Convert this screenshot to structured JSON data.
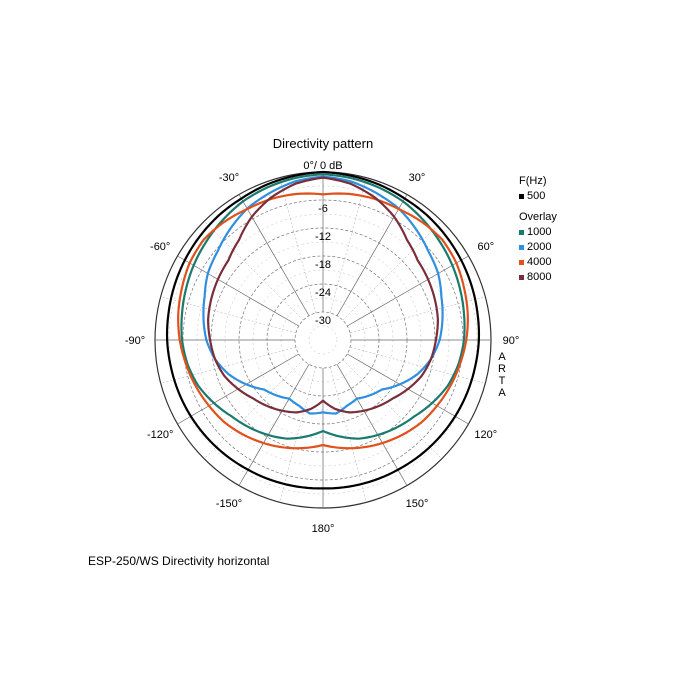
{
  "chart_data": {
    "type": "polar",
    "title": "Directivity pattern",
    "radial_labels": [
      "0°/ 0 dB",
      "-6",
      "-12",
      "-18",
      "-24",
      "-30"
    ],
    "radial_range_db": [
      -36,
      0
    ],
    "radial_step_db": 6,
    "angle_labels": [
      {
        "deg": -30,
        "text": "-30°"
      },
      {
        "deg": 30,
        "text": "30°"
      },
      {
        "deg": -60,
        "text": "-60°"
      },
      {
        "deg": 60,
        "text": "60°"
      },
      {
        "deg": -90,
        "text": "-90°"
      },
      {
        "deg": 90,
        "text": "90°"
      },
      {
        "deg": -120,
        "text": "-120°"
      },
      {
        "deg": 120,
        "text": "120°"
      },
      {
        "deg": -150,
        "text": "-150°"
      },
      {
        "deg": 150,
        "text": "150°"
      },
      {
        "deg": 180,
        "text": "180°"
      }
    ],
    "grid": true,
    "angles_deg": [
      0,
      10,
      20,
      30,
      40,
      50,
      60,
      70,
      80,
      90,
      100,
      110,
      120,
      130,
      140,
      150,
      160,
      170,
      180
    ],
    "symmetric": true,
    "series": [
      {
        "name": "500",
        "color": "#000000",
        "values_db": [
          0,
          -0.3,
          -0.6,
          -1.0,
          -1.2,
          -1.5,
          -1.8,
          -2.1,
          -2.4,
          -2.6,
          -2.9,
          -3.1,
          -3.3,
          -3.5,
          -3.7,
          -3.9,
          -4.0,
          -4.1,
          -4.2
        ]
      },
      {
        "name": "1000",
        "color": "#1a7a6e",
        "values_db": [
          -0.5,
          -0.8,
          -1.2,
          -1.7,
          -2.5,
          -3.3,
          -4.0,
          -4.7,
          -5.3,
          -5.8,
          -6.5,
          -7.5,
          -9.0,
          -10.5,
          -11.5,
          -12.5,
          -13.5,
          -15.0,
          -16.5
        ]
      },
      {
        "name": "2000",
        "color": "#2f8fe0",
        "values_db": [
          -1.0,
          -1.5,
          -2.5,
          -3.5,
          -5.0,
          -6.5,
          -7.5,
          -9.0,
          -10.0,
          -11.0,
          -12.5,
          -14.5,
          -17.0,
          -19.5,
          -20.5,
          -21.5,
          -21.0,
          -20.0,
          -20.5
        ]
      },
      {
        "name": "4000",
        "color": "#e0511c",
        "values_db": [
          -4.8,
          -4.2,
          -3.8,
          -3.6,
          -3.0,
          -2.6,
          -3.0,
          -3.8,
          -4.5,
          -5.3,
          -6.2,
          -7.0,
          -7.8,
          -8.5,
          -9.5,
          -10.5,
          -11.5,
          -12.5,
          -13.5
        ]
      },
      {
        "name": "8000",
        "color": "#7a2e3a",
        "values_db": [
          -1.2,
          -2.0,
          -3.5,
          -5.5,
          -8.0,
          -9.5,
          -10.0,
          -10.5,
          -11.0,
          -11.8,
          -12.5,
          -13.5,
          -15.0,
          -16.5,
          -17.5,
          -18.5,
          -19.5,
          -21.0,
          -23.0
        ]
      }
    ],
    "legend": {
      "header": "F(Hz)",
      "overlay_header": "Overlay",
      "placement": "right"
    }
  },
  "side_text": [
    "A",
    "R",
    "T",
    "A"
  ],
  "caption": "ESP-250/WS  Directivity horizontal"
}
